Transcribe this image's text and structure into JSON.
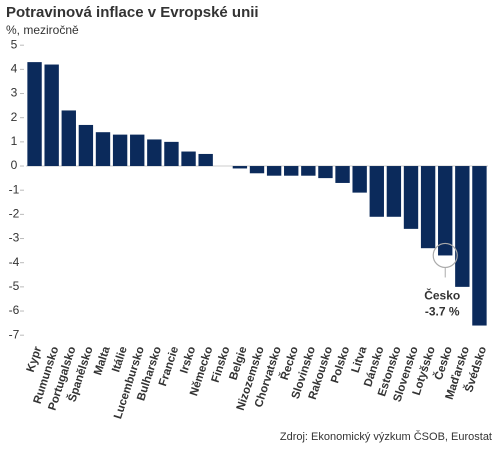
{
  "chart_data": {
    "type": "bar",
    "title": "Potravinová inflace v Evropské unii",
    "subtitle": "%, meziročně",
    "categories": [
      "Kypr",
      "Rumunsko",
      "Portugalsko",
      "Španělsko",
      "Malta",
      "Itálie",
      "Lucembursko",
      "Bulharsko",
      "Francie",
      "Irsko",
      "Německo",
      "Finsko",
      "Belgie",
      "Nizozemsko",
      "Chorvatsko",
      "Řecko",
      "Slovinsko",
      "Rakousko",
      "Polsko",
      "Litva",
      "Dánsko",
      "Estonsko",
      "Slovensko",
      "Lotyšsko",
      "Česko",
      "Maďarsko",
      "Švédsko"
    ],
    "values": [
      4.3,
      4.2,
      2.3,
      1.7,
      1.4,
      1.3,
      1.3,
      1.1,
      1.0,
      0.6,
      0.5,
      0,
      -0.1,
      -0.3,
      -0.4,
      -0.4,
      -0.4,
      -0.5,
      -0.7,
      -1.1,
      -2.1,
      -2.1,
      -2.6,
      -3.4,
      -3.7,
      -5.0,
      -6.6
    ],
    "color": "#0b2a5b",
    "ylim": [
      -7,
      5
    ],
    "yticks": [
      -7,
      -6,
      -5,
      -4,
      -3,
      -2,
      -1,
      0,
      1,
      2,
      3,
      4,
      5
    ],
    "annotation": [
      "Česko",
      "-3.7 %"
    ],
    "source": "Zdroj: Ekonomický výzkum ČSOB, Eurostat"
  }
}
